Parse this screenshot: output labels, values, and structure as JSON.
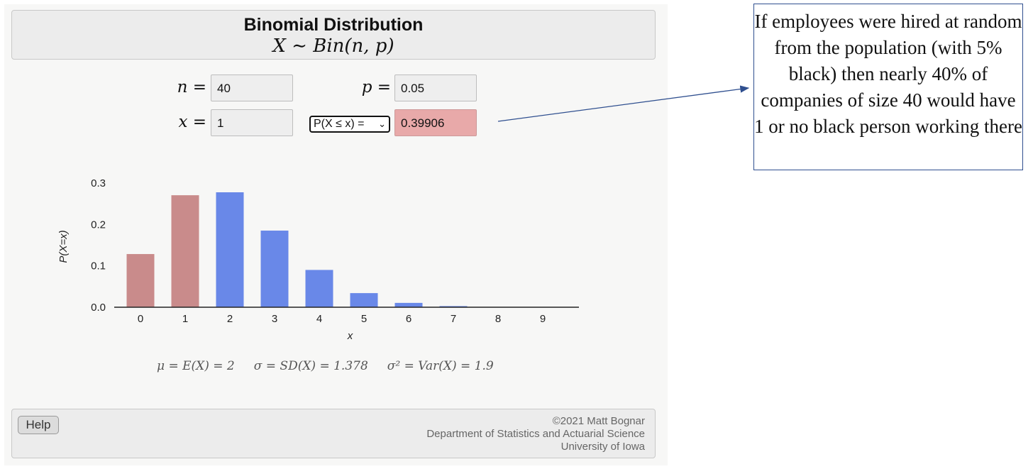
{
  "header": {
    "title": "Binomial Distribution",
    "subtitle": "X ∼ Bin(n, p)"
  },
  "inputs": {
    "n_label": "n =",
    "n_value": "40",
    "p_label": "p =",
    "p_value": "0.05",
    "x_label": "x =",
    "x_value": "1",
    "prob_select": "P(X ≤ x) =",
    "prob_value": "0.39906"
  },
  "stats": {
    "text": "μ = E(X) = 2     σ = SD(X) = 1.378     σ² = Var(X) = 1.9"
  },
  "footer": {
    "help_label": "Help",
    "copyright": "©2021 Matt Bognar",
    "department": "Department of Statistics and Actuarial Science",
    "university": "University of Iowa"
  },
  "callout": {
    "text": "If employees were hired at random from the population (with 5% black) then nearly 40% of companies of size 40 would have 1 or no black person working there"
  },
  "colors": {
    "highlight_bar": "#c98b8b",
    "normal_bar": "#6988e8",
    "result_field": "#e8a9a9"
  },
  "chart_data": {
    "type": "bar",
    "categories": [
      "0",
      "1",
      "2",
      "3",
      "4",
      "5",
      "6",
      "7",
      "8",
      "9"
    ],
    "values": [
      0.1285,
      0.2706,
      0.2777,
      0.1851,
      0.0901,
      0.0341,
      0.0105,
      0.0027,
      0.0006,
      0.0001
    ],
    "highlighted": [
      true,
      true,
      false,
      false,
      false,
      false,
      false,
      false,
      false,
      false
    ],
    "xlabel": "x",
    "ylabel": "P(X=x)",
    "ylim": [
      0,
      0.3
    ],
    "yticks": [
      "0.0",
      "0.1",
      "0.2",
      "0.3"
    ]
  }
}
